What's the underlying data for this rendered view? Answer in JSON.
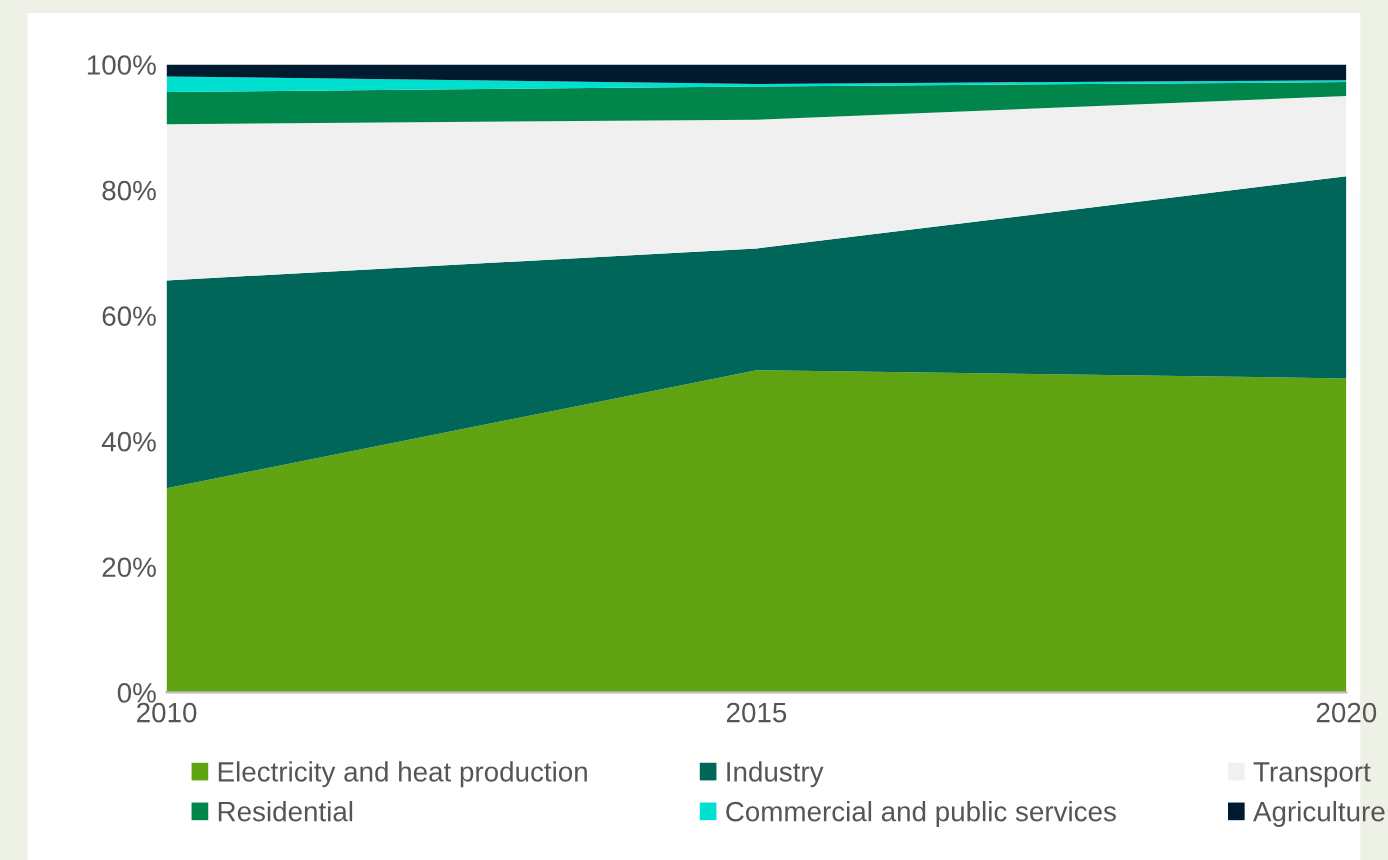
{
  "chart_data": {
    "type": "area",
    "stacked": true,
    "x": [
      2010,
      2015,
      2020
    ],
    "series": [
      {
        "name": "Electricity and heat production",
        "color": "#5fa313",
        "values": [
          32.5,
          51.3,
          50.0
        ]
      },
      {
        "name": "Industry",
        "color": "#00665a",
        "values": [
          33.1,
          19.4,
          32.2
        ]
      },
      {
        "name": "Transport",
        "color": "#f0f0f0",
        "values": [
          24.9,
          20.5,
          12.8
        ]
      },
      {
        "name": "Residential",
        "color": "#00864a",
        "values": [
          5.1,
          5.3,
          2.2
        ]
      },
      {
        "name": "Commercial and public services",
        "color": "#00e0d0",
        "values": [
          2.5,
          0.4,
          0.3
        ]
      },
      {
        "name": "Agriculture",
        "color": "#001a30",
        "values": [
          1.9,
          3.1,
          2.5
        ]
      }
    ],
    "xlim": [
      2010,
      2020
    ],
    "xticks": [
      2010,
      2015,
      2020
    ],
    "ylim": [
      0,
      100
    ],
    "yticks": [
      {
        "value": 0,
        "label": "0%"
      },
      {
        "value": 20,
        "label": "20%"
      },
      {
        "value": 40,
        "label": "40%"
      },
      {
        "value": 60,
        "label": "60%"
      },
      {
        "value": 80,
        "label": "80%"
      },
      {
        "value": 100,
        "label": "100%"
      }
    ],
    "grid": false,
    "legend": "bottom"
  }
}
